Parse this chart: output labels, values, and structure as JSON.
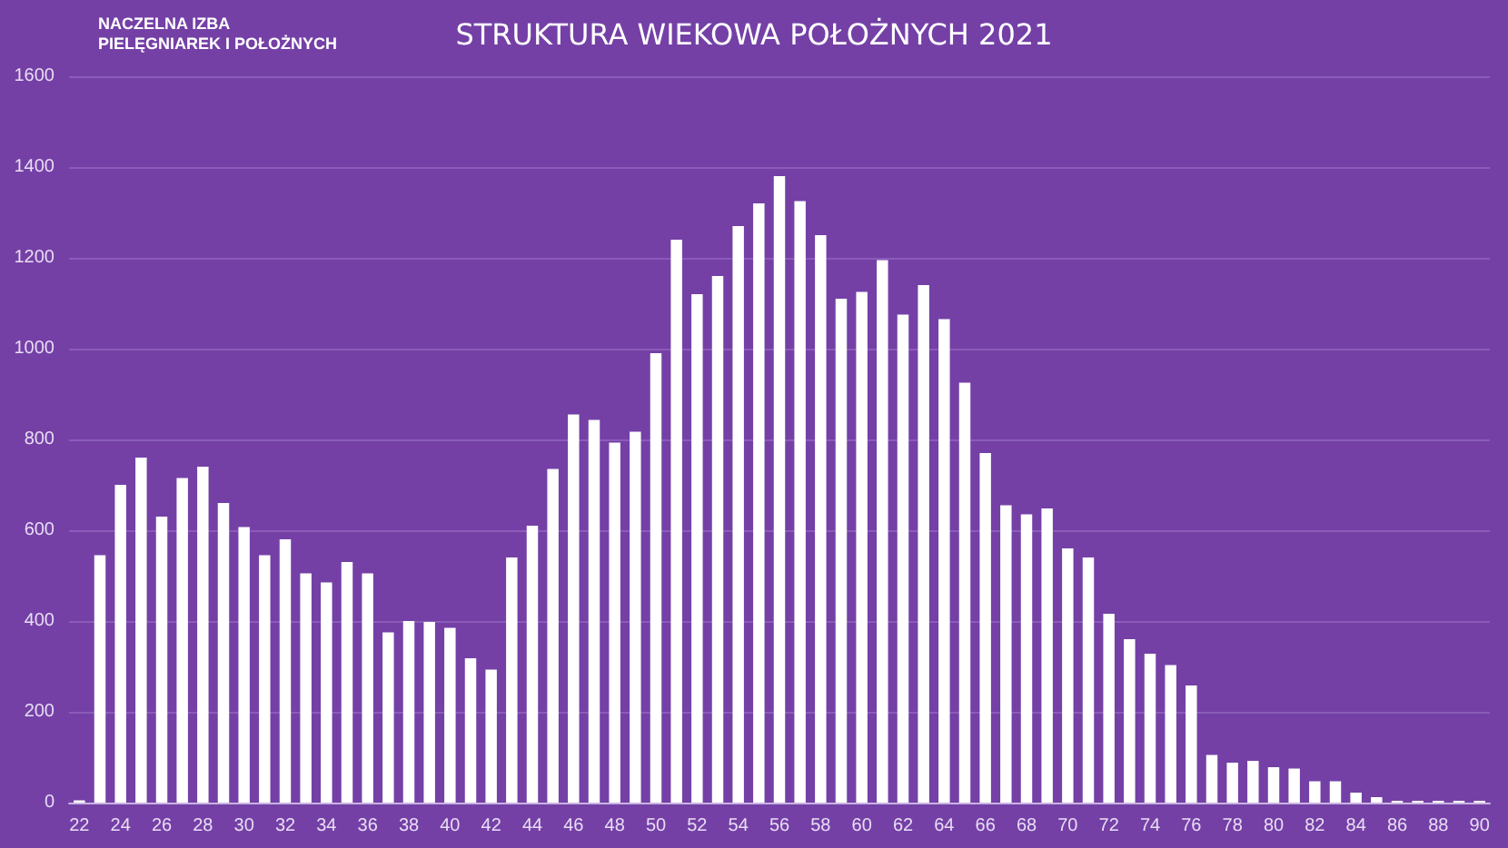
{
  "chart_data": {
    "type": "bar",
    "title": "STRUKTURA WIEKOWA POŁOŻNYCH 2021",
    "annotations": [
      "NACZELNA IZBA\nPIELĘGNIAREK I POŁOŻNYCH"
    ],
    "categories": [
      "22",
      null,
      "24",
      null,
      "26",
      null,
      "28",
      null,
      "30",
      null,
      "32",
      null,
      "34",
      null,
      "36",
      null,
      "38",
      null,
      "40",
      null,
      "42",
      null,
      "44",
      null,
      "46",
      null,
      "48",
      null,
      "50",
      null,
      "52",
      null,
      "54",
      null,
      "56",
      null,
      "58",
      null,
      "60",
      null,
      "62",
      null,
      "64",
      null,
      "66",
      null,
      "68",
      null,
      "70",
      null,
      "72",
      null,
      "74",
      null,
      "76",
      null,
      "78",
      null,
      "80",
      null,
      "82",
      null,
      "84",
      null,
      "86",
      null,
      "88",
      null,
      "90"
    ],
    "values": [
      5,
      545,
      700,
      760,
      630,
      715,
      740,
      660,
      607,
      545,
      580,
      505,
      485,
      530,
      505,
      375,
      400,
      398,
      385,
      318,
      293,
      540,
      610,
      735,
      855,
      843,
      793,
      817,
      990,
      1240,
      1120,
      1160,
      1270,
      1320,
      1380,
      1325,
      1250,
      1110,
      1125,
      1195,
      1075,
      1140,
      1065,
      925,
      770,
      655,
      635,
      648,
      560,
      540,
      416,
      360,
      328,
      303,
      258,
      105,
      88,
      92,
      78,
      75,
      47,
      47,
      22,
      12,
      4,
      4,
      4,
      4,
      4
    ],
    "color": "#ffffff",
    "ylim": [
      0,
      1600
    ],
    "yticks": [
      0,
      200,
      400,
      600,
      800,
      1000,
      1200,
      1400,
      1600
    ],
    "grid": "y"
  }
}
